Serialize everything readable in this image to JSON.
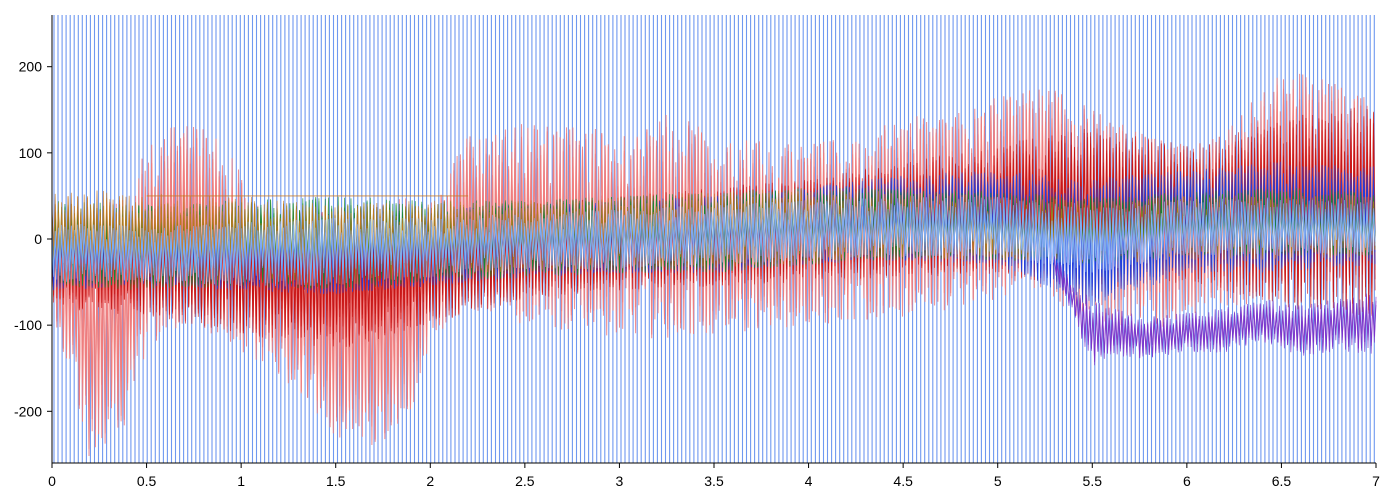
{
  "chart_data": {
    "type": "line",
    "title": "",
    "xlabel": "",
    "ylabel": "",
    "xlim": [
      0,
      7
    ],
    "ylim": [
      -260,
      260
    ],
    "x_ticks": [
      0,
      0.5,
      1,
      1.5,
      2,
      2.5,
      3,
      3.5,
      4,
      4.5,
      5,
      5.5,
      6,
      6.5,
      7
    ],
    "x_tick_labels": [
      "0",
      "0.5",
      "1",
      "1.5",
      "2",
      "2.5",
      "3",
      "3.5",
      "4",
      "4.5",
      "5",
      "5.5",
      "6",
      "6.5",
      "7"
    ],
    "y_ticks": [
      200,
      100,
      0,
      -100,
      -200
    ],
    "y_tick_labels": [
      "200",
      "100",
      "0",
      "-100",
      "-200"
    ],
    "grid": false,
    "legend": "none",
    "colors": {
      "vertical_lines": "#6f98f0",
      "light_red": "#f07d7d",
      "dark_red": "#c81414",
      "blue": "#2040e0",
      "green": "#1a8a2a",
      "purple": "#7a30c8",
      "light_blue": "#7fb0ff",
      "orange": "#c87820"
    },
    "series": [
      {
        "color_key": "light_red",
        "envelope_x": [
          0,
          0.2,
          0.4,
          0.5,
          0.7,
          0.9,
          1.0,
          1.2,
          1.5,
          1.7,
          1.9,
          2.0,
          2.2,
          2.5,
          2.8,
          3.0,
          3.3,
          3.5,
          3.8,
          4.0,
          4.3,
          4.5,
          4.8,
          5.0,
          5.2,
          5.4,
          5.6,
          5.8,
          6.0,
          6.2,
          6.5,
          6.8,
          7.0
        ],
        "upper": [
          30,
          40,
          50,
          110,
          140,
          115,
          80,
          35,
          40,
          45,
          50,
          45,
          120,
          135,
          130,
          125,
          150,
          120,
          115,
          110,
          125,
          140,
          150,
          165,
          175,
          170,
          140,
          120,
          110,
          130,
          200,
          180,
          160
        ],
        "lower": [
          -80,
          -260,
          -220,
          -130,
          -100,
          -115,
          -130,
          -160,
          -230,
          -255,
          -200,
          -120,
          -80,
          -100,
          -110,
          -115,
          -120,
          -110,
          -105,
          -100,
          -95,
          -90,
          -80,
          -70,
          -60,
          -90,
          -100,
          -110,
          -90,
          -80,
          -70,
          -60,
          -60
        ]
      },
      {
        "color_key": "dark_red",
        "envelope_x": [
          0,
          0.5,
          1.0,
          1.5,
          2.0,
          2.5,
          3.0,
          3.5,
          4.0,
          4.5,
          5.0,
          5.5,
          6.0,
          6.5,
          7.0
        ],
        "upper": [
          35,
          30,
          30,
          35,
          30,
          40,
          50,
          60,
          70,
          90,
          110,
          130,
          110,
          140,
          160
        ],
        "lower": [
          -80,
          -90,
          -110,
          -130,
          -100,
          -70,
          -60,
          -55,
          -50,
          -45,
          -40,
          -60,
          -50,
          -80,
          -90
        ]
      },
      {
        "color_key": "blue",
        "envelope_x": [
          0,
          0.5,
          1.0,
          1.5,
          2.0,
          2.5,
          3.0,
          3.5,
          4.0,
          4.5,
          5.0,
          5.5,
          6.0,
          6.5,
          7.0
        ],
        "upper": [
          25,
          20,
          25,
          30,
          35,
          40,
          45,
          50,
          60,
          75,
          80,
          70,
          80,
          90,
          85
        ],
        "lower": [
          -60,
          -55,
          -60,
          -65,
          -55,
          -45,
          -40,
          -40,
          -30,
          -25,
          -30,
          -80,
          -40,
          -40,
          -30
        ]
      },
      {
        "color_key": "purple",
        "envelope_x": [
          5.3,
          5.4,
          5.5,
          5.6,
          5.8,
          6.0,
          6.2,
          6.4,
          6.6,
          6.8,
          7.0
        ],
        "upper": [
          -20,
          -50,
          -70,
          -80,
          -90,
          -85,
          -80,
          -70,
          -75,
          -70,
          -60
        ],
        "lower": [
          -40,
          -90,
          -150,
          -135,
          -140,
          -130,
          -135,
          -120,
          -140,
          -130,
          -135
        ]
      },
      {
        "color_key": "green",
        "envelope_x": [
          0,
          0.5,
          1.0,
          1.5,
          2.0,
          2.5,
          3.0,
          3.5,
          4.0,
          4.5,
          5.0,
          5.5,
          6.0,
          6.5,
          7.0
        ],
        "upper": [
          45,
          40,
          45,
          50,
          45,
          45,
          50,
          55,
          60,
          60,
          55,
          50,
          55,
          60,
          55
        ],
        "lower": [
          -55,
          -60,
          -55,
          -60,
          -50,
          -45,
          -40,
          -40,
          -30,
          -25,
          -25,
          -30,
          -20,
          -20,
          -20
        ]
      },
      {
        "color_key": "orange",
        "envelope_x": [
          0,
          0.5,
          1.0,
          1.5,
          2.0,
          2.5,
          3.0,
          3.5,
          4.0,
          4.5,
          5.0,
          5.5,
          6.0,
          6.5,
          7.0
        ],
        "upper": [
          60,
          55,
          50,
          40,
          45,
          45,
          50,
          55,
          60,
          55,
          50,
          45,
          50,
          55,
          50
        ],
        "lower": [
          -40,
          -45,
          -50,
          -55,
          -45,
          -40,
          -35,
          -35,
          -30,
          -25,
          -25,
          -30,
          -25,
          -25,
          -20
        ]
      },
      {
        "color_key": "light_blue",
        "envelope_x": [
          0,
          0.5,
          1.0,
          1.5,
          2.0,
          2.5,
          3.0,
          3.5,
          4.0,
          4.5,
          5.0,
          5.5,
          6.0,
          6.5,
          7.0
        ],
        "upper": [
          20,
          15,
          20,
          25,
          25,
          30,
          35,
          40,
          45,
          50,
          50,
          40,
          45,
          50,
          45
        ],
        "lower": [
          -50,
          -50,
          -55,
          -55,
          -45,
          -35,
          -35,
          -30,
          -25,
          -20,
          -20,
          -40,
          -20,
          -20,
          -15
        ]
      }
    ]
  }
}
